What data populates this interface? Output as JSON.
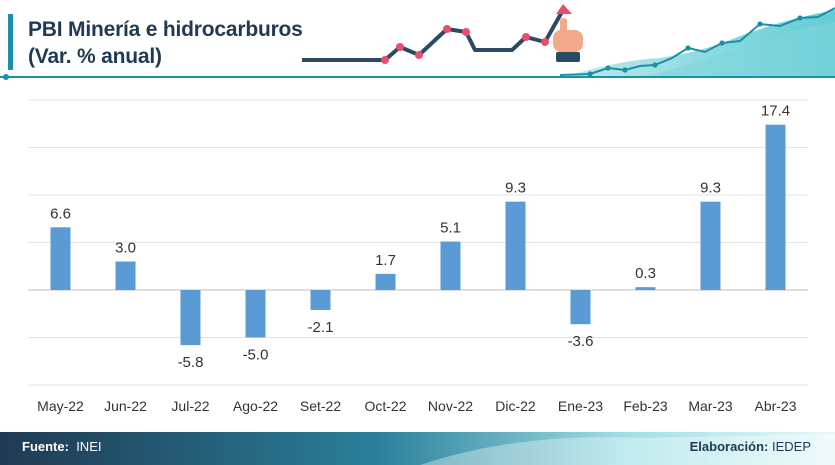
{
  "header": {
    "title_line_1": "PBI Minería e hidrocarburos",
    "title_line_2": "(Var. % anual)"
  },
  "footer": {
    "source_label": "Fuente:",
    "source_value": "INEI",
    "credit_label": "Elaboración:",
    "credit_value": "IEDEP"
  },
  "colors": {
    "bar": "#5b9bd5",
    "title": "#1f3a52",
    "accent_teal": "#1b8fa6",
    "deco_line": "#2a4a66",
    "deco_points": "#e94e6b"
  },
  "icons": [
    "rising-line-decoration",
    "pointing-hand-icon",
    "area-wave-decoration"
  ],
  "chart_data": {
    "type": "bar",
    "title": "PBI Minería e hidrocarburos",
    "subtitle": "(Var. % anual)",
    "categories": [
      "May-22",
      "Jun-22",
      "Jul-22",
      "Ago-22",
      "Set-22",
      "Oct-22",
      "Nov-22",
      "Dic-22",
      "Ene-23",
      "Feb-23",
      "Mar-23",
      "Abr-23"
    ],
    "values": [
      6.6,
      3.0,
      -5.8,
      -5.0,
      -2.1,
      1.7,
      5.1,
      9.3,
      -3.6,
      0.3,
      9.3,
      17.4
    ],
    "value_labels": [
      "6.6",
      "3.0",
      "-5.8",
      "-5.0",
      "-2.1",
      "1.7",
      "5.1",
      "9.3",
      "-3.6",
      "0.3",
      "9.3",
      "17.4"
    ],
    "xlabel": "",
    "ylabel": "",
    "ylim": [
      -10,
      20
    ],
    "grid": true,
    "legend": "none"
  }
}
